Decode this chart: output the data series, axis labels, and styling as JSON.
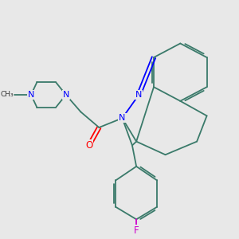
{
  "bg_color": "#e8e8e8",
  "bond_color": "#3a7a6a",
  "nitrogen_color": "#0000ff",
  "oxygen_color": "#ff0000",
  "fluorine_color": "#cc00cc",
  "line_width": 1.4,
  "figsize": [
    3.0,
    3.0
  ],
  "dpi": 100,
  "xlim": [
    0,
    10
  ],
  "ylim": [
    0,
    10
  ]
}
